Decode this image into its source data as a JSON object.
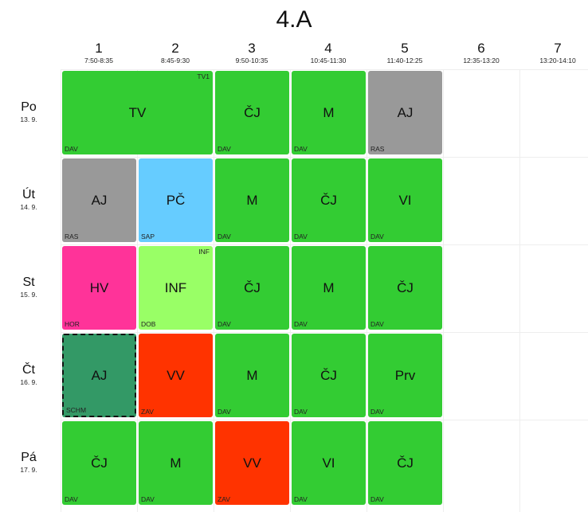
{
  "title": "4.A",
  "periods": [
    {
      "num": "1",
      "time": "7:50-8:35"
    },
    {
      "num": "2",
      "time": "8:45-9:30"
    },
    {
      "num": "3",
      "time": "9:50-10:35"
    },
    {
      "num": "4",
      "time": "10:45-11:30"
    },
    {
      "num": "5",
      "time": "11:40-12:25"
    },
    {
      "num": "6",
      "time": "12:35-13:20"
    },
    {
      "num": "7",
      "time": "13:20-14:10"
    }
  ],
  "days": [
    {
      "name": "Po",
      "date": "13. 9."
    },
    {
      "name": "Út",
      "date": "14. 9."
    },
    {
      "name": "St",
      "date": "15. 9."
    },
    {
      "name": "Čt",
      "date": "16. 9."
    },
    {
      "name": "Pá",
      "date": "17. 9."
    }
  ],
  "colors": {
    "green": "#33cc33",
    "gray": "#999999",
    "blue": "#66ccff",
    "pink": "#ff3399",
    "light_green": "#99ff66",
    "red": "#ff3300",
    "dark_green": "#339966"
  },
  "lessons": [
    {
      "day": 0,
      "period": 0,
      "span": 2,
      "subject": "TV",
      "teacher": "DAV",
      "room": "TV1",
      "color": "green"
    },
    {
      "day": 0,
      "period": 2,
      "span": 1,
      "subject": "ČJ",
      "teacher": "DAV",
      "room": "",
      "color": "green"
    },
    {
      "day": 0,
      "period": 3,
      "span": 1,
      "subject": "M",
      "teacher": "DAV",
      "room": "",
      "color": "green"
    },
    {
      "day": 0,
      "period": 4,
      "span": 1,
      "subject": "AJ",
      "teacher": "RAS",
      "room": "",
      "color": "gray"
    },
    {
      "day": 1,
      "period": 0,
      "span": 1,
      "subject": "AJ",
      "teacher": "RAS",
      "room": "",
      "color": "gray"
    },
    {
      "day": 1,
      "period": 1,
      "span": 1,
      "subject": "PČ",
      "teacher": "SAP",
      "room": "",
      "color": "blue"
    },
    {
      "day": 1,
      "period": 2,
      "span": 1,
      "subject": "M",
      "teacher": "DAV",
      "room": "",
      "color": "green"
    },
    {
      "day": 1,
      "period": 3,
      "span": 1,
      "subject": "ČJ",
      "teacher": "DAV",
      "room": "",
      "color": "green"
    },
    {
      "day": 1,
      "period": 4,
      "span": 1,
      "subject": "VI",
      "teacher": "DAV",
      "room": "",
      "color": "green"
    },
    {
      "day": 2,
      "period": 0,
      "span": 1,
      "subject": "HV",
      "teacher": "HOR",
      "room": "",
      "color": "pink"
    },
    {
      "day": 2,
      "period": 1,
      "span": 1,
      "subject": "INF",
      "teacher": "DOB",
      "room": "INF",
      "color": "light_green"
    },
    {
      "day": 2,
      "period": 2,
      "span": 1,
      "subject": "ČJ",
      "teacher": "DAV",
      "room": "",
      "color": "green"
    },
    {
      "day": 2,
      "period": 3,
      "span": 1,
      "subject": "M",
      "teacher": "DAV",
      "room": "",
      "color": "green"
    },
    {
      "day": 2,
      "period": 4,
      "span": 1,
      "subject": "ČJ",
      "teacher": "DAV",
      "room": "",
      "color": "green"
    },
    {
      "day": 3,
      "period": 0,
      "span": 1,
      "subject": "AJ",
      "teacher": "SCHM",
      "room": "",
      "color": "dark_green",
      "changed": true
    },
    {
      "day": 3,
      "period": 1,
      "span": 1,
      "subject": "VV",
      "teacher": "ZAV",
      "room": "",
      "color": "red"
    },
    {
      "day": 3,
      "period": 2,
      "span": 1,
      "subject": "M",
      "teacher": "DAV",
      "room": "",
      "color": "green"
    },
    {
      "day": 3,
      "period": 3,
      "span": 1,
      "subject": "ČJ",
      "teacher": "DAV",
      "room": "",
      "color": "green"
    },
    {
      "day": 3,
      "period": 4,
      "span": 1,
      "subject": "Prv",
      "teacher": "DAV",
      "room": "",
      "color": "green"
    },
    {
      "day": 4,
      "period": 0,
      "span": 1,
      "subject": "ČJ",
      "teacher": "DAV",
      "room": "",
      "color": "green"
    },
    {
      "day": 4,
      "period": 1,
      "span": 1,
      "subject": "M",
      "teacher": "DAV",
      "room": "",
      "color": "green"
    },
    {
      "day": 4,
      "period": 2,
      "span": 1,
      "subject": "VV",
      "teacher": "ZAV",
      "room": "",
      "color": "red"
    },
    {
      "day": 4,
      "period": 3,
      "span": 1,
      "subject": "VI",
      "teacher": "DAV",
      "room": "",
      "color": "green"
    },
    {
      "day": 4,
      "period": 4,
      "span": 1,
      "subject": "ČJ",
      "teacher": "DAV",
      "room": "",
      "color": "green"
    }
  ]
}
